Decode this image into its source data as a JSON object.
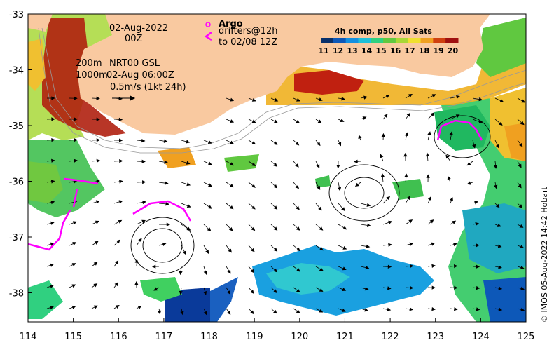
{
  "map": {
    "date_line": "02-Aug-2022",
    "time_line": "00Z",
    "contour_label_200": "200m",
    "contour_label_1000": "1000m",
    "product_line": "NRT00 GSL",
    "product_time": "02-Aug 06:00Z",
    "scale_label": "0.5m/s (1kt 24h)",
    "argo_label": "Argo",
    "drifters_line1": "drifters@12h",
    "drifters_line2": "to 02/08 12Z",
    "credit": "© IMOS 05-Aug-2022 14:42 Hobart",
    "colorbar": {
      "title": "4h comp, p50, All Sats",
      "ticks": [
        "11",
        "12",
        "13",
        "14",
        "15",
        "16",
        "17",
        "18",
        "19",
        "20"
      ],
      "colors": [
        "#08306b",
        "#0d58b8",
        "#1590e0",
        "#20c0d8",
        "#30d080",
        "#60c840",
        "#a8d838",
        "#f0e030",
        "#f0a020",
        "#d04010",
        "#a01010"
      ]
    },
    "x_ticks": [
      "114",
      "115",
      "116",
      "117",
      "118",
      "119",
      "120",
      "121",
      "122",
      "123",
      "124",
      "125"
    ],
    "y_ticks": [
      "-33",
      "-34",
      "-35",
      "-36",
      "-37",
      "-38"
    ],
    "colors": {
      "land": "#f9c9a0",
      "drifter": "#ff00ff",
      "sst_cool": "#1a8fe0",
      "sst_warm": "#e0a020"
    }
  }
}
